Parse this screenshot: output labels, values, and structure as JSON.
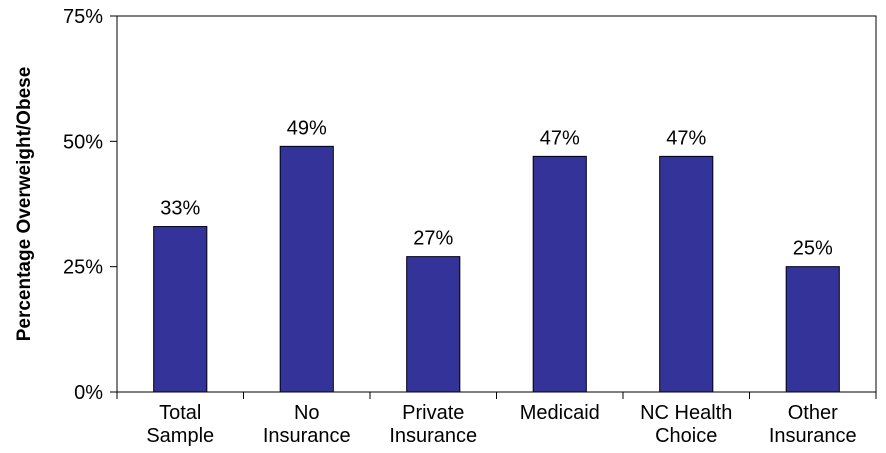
{
  "chart_data": {
    "type": "bar",
    "title": "",
    "xlabel": "",
    "ylabel": "Percentage Overweight/Obese",
    "ylim": [
      0,
      75
    ],
    "yticks": [
      0,
      25,
      50,
      75
    ],
    "ytick_labels": [
      "0%",
      "25%",
      "50%",
      "75%"
    ],
    "categories": [
      [
        "Total",
        "Sample"
      ],
      [
        "No",
        "Insurance"
      ],
      [
        "Private",
        "Insurance"
      ],
      [
        "Medicaid"
      ],
      [
        "NC Health",
        "Choice"
      ],
      [
        "Other",
        "Insurance"
      ]
    ],
    "values": [
      33,
      49,
      27,
      47,
      47,
      25
    ],
    "data_labels": [
      "33%",
      "49%",
      "27%",
      "47%",
      "47%",
      "25%"
    ],
    "grid": false,
    "legend": "none",
    "bar_color": "#333399",
    "bar_edge_color": "#000000"
  }
}
